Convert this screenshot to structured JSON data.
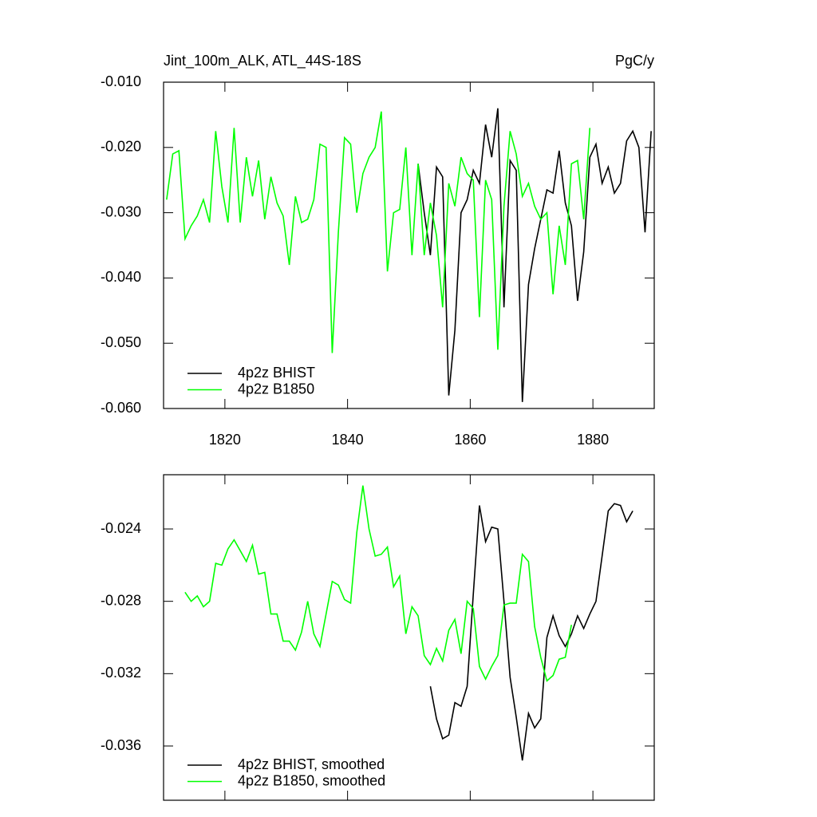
{
  "chart_data": [
    {
      "type": "line",
      "title": "Jint_100m_ALK, ATL_44S-18S",
      "units": "PgC/y",
      "xlim": [
        1810,
        1890
      ],
      "xticks": [
        1820,
        1840,
        1860,
        1880
      ],
      "show_xtick_labels": true,
      "ylim": [
        -0.06,
        -0.01
      ],
      "yticks": [
        {
          "value": -0.06,
          "label": "-0.060"
        },
        {
          "value": -0.05,
          "label": "-0.050"
        },
        {
          "value": -0.04,
          "label": "-0.040"
        },
        {
          "value": -0.03,
          "label": "-0.030"
        },
        {
          "value": -0.02,
          "label": "-0.020"
        },
        {
          "value": -0.01,
          "label": "-0.010"
        }
      ],
      "legend": "lower left",
      "series": [
        {
          "name": "4p2z BHIST",
          "color": "#000000",
          "x": [
            1851.5,
            1852.5,
            1853.5,
            1854.5,
            1855.5,
            1856.5,
            1857.5,
            1858.5,
            1859.5,
            1860.5,
            1861.5,
            1862.5,
            1863.5,
            1864.5,
            1865.5,
            1866.5,
            1867.5,
            1868.5,
            1869.5,
            1870.5,
            1871.5,
            1872.5,
            1873.5,
            1874.5,
            1875.5,
            1876.5,
            1877.5,
            1878.5,
            1879.5,
            1880.5,
            1881.5,
            1882.5,
            1883.5,
            1884.5,
            1885.5,
            1886.5,
            1887.5,
            1888.5,
            1889.5
          ],
          "values": [
            -0.0225,
            -0.03,
            -0.0365,
            -0.023,
            -0.0245,
            -0.058,
            -0.048,
            -0.03,
            -0.028,
            -0.0235,
            -0.0255,
            -0.0165,
            -0.0215,
            -0.014,
            -0.0445,
            -0.022,
            -0.0235,
            -0.059,
            -0.041,
            -0.0355,
            -0.031,
            -0.0265,
            -0.027,
            -0.0205,
            -0.0285,
            -0.032,
            -0.0435,
            -0.036,
            -0.0215,
            -0.0195,
            -0.0255,
            -0.023,
            -0.027,
            -0.0255,
            -0.019,
            -0.0175,
            -0.02,
            -0.033,
            -0.0175
          ]
        },
        {
          "name": "4p2z B1850",
          "color": "#00ff00",
          "x": [
            1810.5,
            1811.5,
            1812.5,
            1813.5,
            1814.5,
            1815.5,
            1816.5,
            1817.5,
            1818.5,
            1819.5,
            1820.5,
            1821.5,
            1822.5,
            1823.5,
            1824.5,
            1825.5,
            1826.5,
            1827.5,
            1828.5,
            1829.5,
            1830.5,
            1831.5,
            1832.5,
            1833.5,
            1834.5,
            1835.5,
            1836.5,
            1837.5,
            1838.5,
            1839.5,
            1840.5,
            1841.5,
            1842.5,
            1843.5,
            1844.5,
            1845.5,
            1846.5,
            1847.5,
            1848.5,
            1849.5,
            1850.5,
            1851.5,
            1852.5,
            1853.5,
            1854.5,
            1855.5,
            1856.5,
            1857.5,
            1858.5,
            1859.5,
            1860.5,
            1861.5,
            1862.5,
            1863.5,
            1864.5,
            1865.5,
            1866.5,
            1867.5,
            1868.5,
            1869.5,
            1870.5,
            1871.5,
            1872.5,
            1873.5,
            1874.5,
            1875.5,
            1876.5,
            1877.5,
            1878.5,
            1879.5
          ],
          "values": [
            -0.028,
            -0.021,
            -0.0205,
            -0.034,
            -0.032,
            -0.0305,
            -0.028,
            -0.0315,
            -0.0175,
            -0.026,
            -0.0315,
            -0.017,
            -0.0315,
            -0.0215,
            -0.0275,
            -0.022,
            -0.031,
            -0.0245,
            -0.0285,
            -0.0305,
            -0.038,
            -0.0275,
            -0.0315,
            -0.031,
            -0.028,
            -0.0195,
            -0.02,
            -0.0515,
            -0.033,
            -0.0185,
            -0.0195,
            -0.03,
            -0.024,
            -0.0215,
            -0.02,
            -0.0145,
            -0.039,
            -0.03,
            -0.0295,
            -0.02,
            -0.0365,
            -0.0225,
            -0.0365,
            -0.0285,
            -0.0335,
            -0.0445,
            -0.0255,
            -0.029,
            -0.0215,
            -0.024,
            -0.025,
            -0.046,
            -0.025,
            -0.028,
            -0.051,
            -0.029,
            -0.0175,
            -0.021,
            -0.0275,
            -0.0255,
            -0.029,
            -0.031,
            -0.03,
            -0.0425,
            -0.032,
            -0.038,
            -0.0225,
            -0.022,
            -0.031,
            -0.017
          ]
        }
      ]
    },
    {
      "type": "line",
      "xlim": [
        1810,
        1890
      ],
      "xticks": [
        1820,
        1840,
        1860,
        1880
      ],
      "show_xtick_labels": false,
      "ylim": [
        -0.039,
        -0.021
      ],
      "yticks": [
        -0.036,
        -0.032,
        -0.028,
        -0.024
      ],
      "legend": "lower left",
      "series": [
        {
          "name": "4p2z BHIST, smoothed",
          "color": "#000000",
          "x": [
            1853.5,
            1854.5,
            1855.5,
            1856.5,
            1857.5,
            1858.5,
            1859.5,
            1860.5,
            1861.5,
            1862.5,
            1863.5,
            1864.5,
            1865.5,
            1866.5,
            1867.5,
            1868.5,
            1869.5,
            1870.5,
            1871.5,
            1872.5,
            1873.5,
            1874.5,
            1875.5,
            1876.5,
            1877.5,
            1878.5,
            1879.5,
            1880.5,
            1881.5,
            1882.5,
            1883.5,
            1884.5,
            1885.5,
            1886.5
          ],
          "values": [
            -0.0327,
            -0.0345,
            -0.0356,
            -0.0354,
            -0.0336,
            -0.0338,
            -0.0327,
            -0.0276,
            -0.0227,
            -0.0247,
            -0.0239,
            -0.024,
            -0.028,
            -0.0322,
            -0.0344,
            -0.0368,
            -0.0342,
            -0.035,
            -0.0345,
            -0.03,
            -0.0288,
            -0.0299,
            -0.0305,
            -0.0298,
            -0.0288,
            -0.0295,
            -0.0287,
            -0.028,
            -0.0255,
            -0.023,
            -0.0226,
            -0.0227,
            -0.0236,
            -0.023
          ]
        },
        {
          "name": "4p2z B1850, smoothed",
          "color": "#00ff00",
          "x": [
            1813.5,
            1814.5,
            1815.5,
            1816.5,
            1817.5,
            1818.5,
            1819.5,
            1820.5,
            1821.5,
            1822.5,
            1823.5,
            1824.5,
            1825.5,
            1826.5,
            1827.5,
            1828.5,
            1829.5,
            1830.5,
            1831.5,
            1832.5,
            1833.5,
            1834.5,
            1835.5,
            1836.5,
            1837.5,
            1838.5,
            1839.5,
            1840.5,
            1841.5,
            1842.5,
            1843.5,
            1844.5,
            1845.5,
            1846.5,
            1847.5,
            1848.5,
            1849.5,
            1850.5,
            1851.5,
            1852.5,
            1853.5,
            1854.5,
            1855.5,
            1856.5,
            1857.5,
            1858.5,
            1859.5,
            1860.5,
            1861.5,
            1862.5,
            1863.5,
            1864.5,
            1865.5,
            1866.5,
            1867.5,
            1868.5,
            1869.5,
            1870.5,
            1871.5,
            1872.5,
            1873.5,
            1874.5,
            1875.5,
            1876.5
          ],
          "values": [
            -0.0275,
            -0.028,
            -0.0277,
            -0.0283,
            -0.028,
            -0.0259,
            -0.026,
            -0.0251,
            -0.0246,
            -0.0252,
            -0.0258,
            -0.0249,
            -0.0265,
            -0.0264,
            -0.0287,
            -0.0287,
            -0.0302,
            -0.0302,
            -0.0307,
            -0.0297,
            -0.028,
            -0.0298,
            -0.0305,
            -0.0287,
            -0.0269,
            -0.0271,
            -0.0279,
            -0.0281,
            -0.0242,
            -0.0216,
            -0.024,
            -0.0255,
            -0.0254,
            -0.025,
            -0.0272,
            -0.0266,
            -0.0298,
            -0.0283,
            -0.0288,
            -0.031,
            -0.0315,
            -0.0306,
            -0.0313,
            -0.0296,
            -0.029,
            -0.0309,
            -0.028,
            -0.0284,
            -0.0316,
            -0.0323,
            -0.0316,
            -0.031,
            -0.0282,
            -0.0281,
            -0.0281,
            -0.0254,
            -0.0258,
            -0.0294,
            -0.0311,
            -0.0324,
            -0.0321,
            -0.0312,
            -0.0311,
            -0.0293
          ]
        }
      ]
    }
  ]
}
